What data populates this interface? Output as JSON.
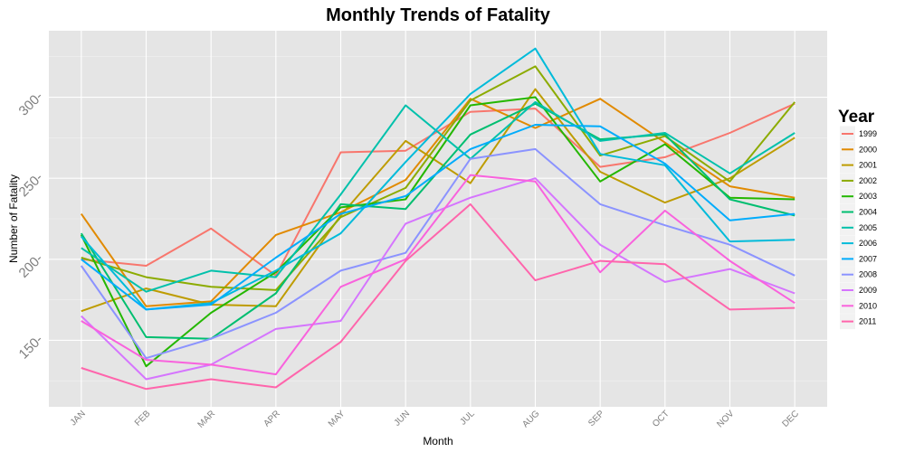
{
  "chart_data": {
    "type": "line",
    "title": "Monthly Trends of Fatality",
    "xlabel": "Month",
    "ylabel": "Number of Fatality",
    "categories": [
      "JAN",
      "FEB",
      "MAR",
      "APR",
      "MAY",
      "JUN",
      "JUL",
      "AUG",
      "SEP",
      "OCT",
      "NOV",
      "DEC"
    ],
    "ylim": [
      109,
      341
    ],
    "yticks": [
      150,
      200,
      250,
      300
    ],
    "ytick_labels": [
      "150-",
      "200-",
      "250-",
      "300-"
    ],
    "grid": true,
    "legend": {
      "title": "Year",
      "position": "right"
    },
    "series": [
      {
        "name": "1999",
        "color": "#F8766D",
        "values": [
          200,
          196,
          219,
          190,
          266,
          267,
          291,
          293,
          257,
          263,
          278,
          296
        ]
      },
      {
        "name": "2000",
        "color": "#E18A00",
        "values": [
          228,
          171,
          174,
          215,
          229,
          249,
          299,
          281,
          299,
          272,
          245,
          238
        ]
      },
      {
        "name": "2001",
        "color": "#BE9C00",
        "values": [
          168,
          182,
          172,
          171,
          227,
          273,
          247,
          305,
          254,
          235,
          250,
          275
        ]
      },
      {
        "name": "2002",
        "color": "#8CAB00",
        "values": [
          201,
          189,
          183,
          181,
          226,
          244,
          298,
          319,
          264,
          276,
          248,
          297
        ]
      },
      {
        "name": "2003",
        "color": "#24B700",
        "values": [
          215,
          134,
          167,
          192,
          232,
          237,
          295,
          300,
          248,
          271,
          238,
          237
        ]
      },
      {
        "name": "2004",
        "color": "#00BE70",
        "values": [
          216,
          152,
          151,
          179,
          234,
          231,
          277,
          296,
          274,
          277,
          237,
          227
        ]
      },
      {
        "name": "2005",
        "color": "#00C1AB",
        "values": [
          207,
          180,
          193,
          189,
          240,
          295,
          262,
          297,
          273,
          278,
          253,
          278
        ]
      },
      {
        "name": "2006",
        "color": "#00BBDA",
        "values": [
          214,
          169,
          173,
          193,
          216,
          260,
          302,
          330,
          265,
          258,
          211,
          212
        ]
      },
      {
        "name": "2007",
        "color": "#00ACFC",
        "values": [
          200,
          169,
          172,
          201,
          228,
          239,
          268,
          283,
          282,
          259,
          224,
          228
        ]
      },
      {
        "name": "2008",
        "color": "#8B93FF",
        "values": [
          196,
          139,
          151,
          167,
          193,
          204,
          262,
          268,
          234,
          221,
          209,
          190
        ]
      },
      {
        "name": "2009",
        "color": "#D575FE",
        "values": [
          165,
          126,
          135,
          157,
          162,
          222,
          238,
          250,
          209,
          186,
          194,
          179
        ]
      },
      {
        "name": "2010",
        "color": "#F962DD",
        "values": [
          162,
          138,
          135,
          129,
          183,
          200,
          252,
          248,
          192,
          230,
          199,
          173
        ]
      },
      {
        "name": "2011",
        "color": "#FF65AC",
        "values": [
          133,
          120,
          126,
          121,
          149,
          199,
          234,
          187,
          199,
          197,
          169,
          170
        ]
      }
    ]
  },
  "colors": {
    "panel_background": "#e5e5e5",
    "grid_major": "#ffffff",
    "grid_minor": "#f2f2f2",
    "tick_text": "#7f7f7f"
  }
}
